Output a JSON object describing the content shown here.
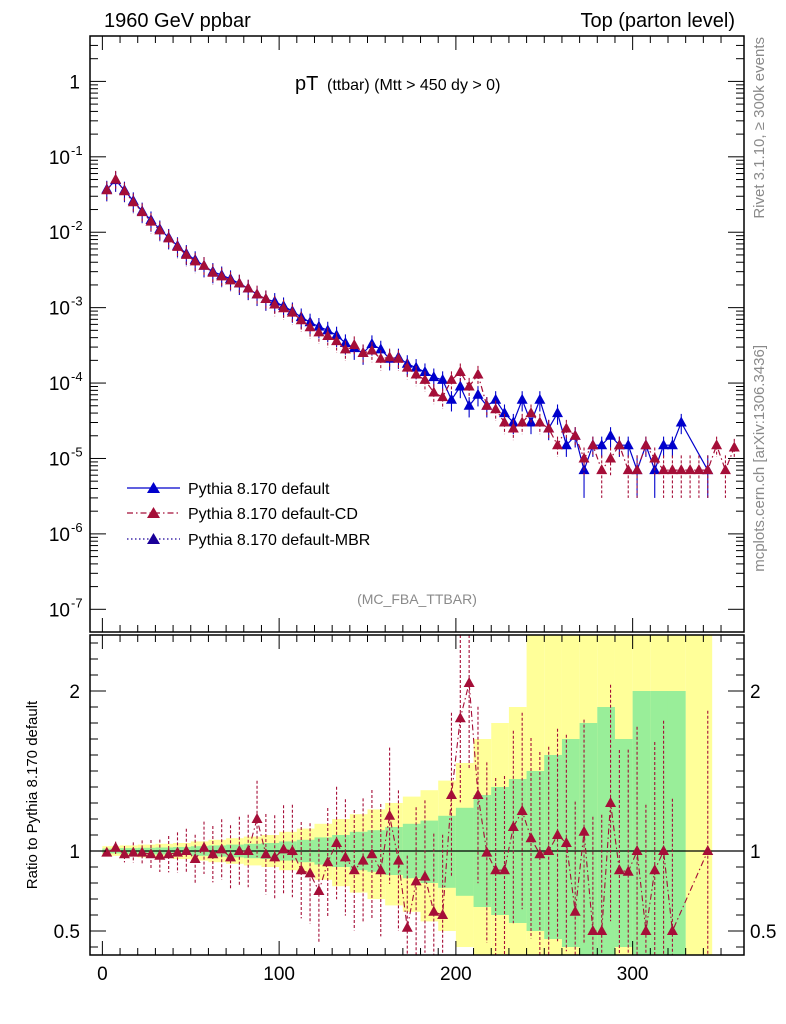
{
  "header": {
    "left": "1960 GeV ppbar",
    "right": "Top (parton level)"
  },
  "plot_title": {
    "main": "pT",
    "sub": "(ttbar) (Mtt > 450 dy > 0)"
  },
  "side_text": {
    "rivet": "Rivet 3.1.10, ≥ 300k events",
    "mcplots": "mcplots.cern.ch [arXiv:1306.3436]"
  },
  "analysis_label": "(MC_FBA_TTBAR)",
  "colors": {
    "default": "#0000cc",
    "cd": "#a50e38",
    "mbr": "#1a0099",
    "band_outer": "#ffff99",
    "band_inner": "#99ee99"
  },
  "chart_data": [
    {
      "type": "scatter",
      "name": "main",
      "yscale": "log",
      "ylim": [
        5e-08,
        4
      ],
      "xlim": [
        -7,
        363
      ],
      "x_ticks": [
        "0",
        "100",
        "200",
        "300"
      ],
      "y_ticks": [
        {
          "base": "1",
          "exp": ""
        },
        {
          "base": "10",
          "exp": "-1"
        },
        {
          "base": "10",
          "exp": "-2"
        },
        {
          "base": "10",
          "exp": "-3"
        },
        {
          "base": "10",
          "exp": "-4"
        },
        {
          "base": "10",
          "exp": "-5"
        },
        {
          "base": "10",
          "exp": "-6"
        },
        {
          "base": "10",
          "exp": "-7"
        }
      ],
      "legend_position": "lower-left",
      "series": [
        {
          "name": "Pythia 8.170 default",
          "style": "solid",
          "x": [
            2.5,
            7.5,
            12.5,
            17.5,
            22.5,
            27.5,
            32.5,
            37.5,
            42.5,
            47.5,
            52.5,
            57.5,
            62.5,
            67.5,
            72.5,
            77.5,
            82.5,
            87.5,
            92.5,
            97.5,
            102.5,
            107.5,
            112.5,
            117.5,
            122.5,
            127.5,
            132.5,
            137.5,
            142.5,
            147.5,
            152.5,
            157.5,
            162.5,
            167.5,
            172.5,
            177.5,
            182.5,
            187.5,
            192.5,
            197.5,
            202.5,
            207.5,
            212.5,
            217.5,
            222.5,
            227.5,
            232.5,
            237.5,
            242.5,
            247.5,
            252.5,
            257.5,
            262.5,
            267.5,
            272.5,
            277.5,
            282.5,
            287.5,
            292.5,
            297.5,
            302.5,
            307.5,
            312.5,
            317.5,
            322.5,
            327.5,
            342.5
          ],
          "y": [
            0.037,
            0.049,
            0.036,
            0.026,
            0.019,
            0.0145,
            0.011,
            0.0085,
            0.0066,
            0.0052,
            0.0043,
            0.0036,
            0.003,
            0.0027,
            0.0024,
            0.0021,
            0.0018,
            0.0015,
            0.0013,
            0.0012,
            0.00105,
            0.0009,
            0.00075,
            0.00064,
            0.00056,
            0.0005,
            0.00043,
            0.00034,
            0.00029,
            0.00025,
            0.00033,
            0.00028,
            0.00021,
            0.00022,
            0.00018,
            0.00016,
            0.00014,
            0.00012,
            0.00011,
            6e-05,
            9e-05,
            5e-05,
            7e-05,
            5e-05,
            6e-05,
            4e-05,
            3e-05,
            6e-05,
            3e-05,
            6e-05,
            2.5e-05,
            4e-05,
            1.5e-05,
            2e-05,
            7e-06,
            1.5e-05,
            1.5e-05,
            2e-05,
            1.5e-05,
            1.5e-05,
            7e-06,
            1.5e-05,
            7e-06,
            1.5e-05,
            1.5e-05,
            3e-05,
            7e-06
          ]
        },
        {
          "name": "Pythia 8.170 default-CD",
          "style": "dash-dot",
          "x": [
            2.5,
            7.5,
            12.5,
            17.5,
            22.5,
            27.5,
            32.5,
            37.5,
            42.5,
            47.5,
            52.5,
            57.5,
            62.5,
            67.5,
            72.5,
            77.5,
            82.5,
            87.5,
            92.5,
            97.5,
            102.5,
            107.5,
            112.5,
            117.5,
            122.5,
            127.5,
            132.5,
            137.5,
            142.5,
            147.5,
            152.5,
            157.5,
            162.5,
            167.5,
            172.5,
            177.5,
            182.5,
            187.5,
            192.5,
            197.5,
            202.5,
            207.5,
            212.5,
            217.5,
            222.5,
            227.5,
            232.5,
            237.5,
            242.5,
            247.5,
            252.5,
            257.5,
            262.5,
            267.5,
            272.5,
            277.5,
            282.5,
            287.5,
            292.5,
            297.5,
            302.5,
            307.5,
            312.5,
            317.5,
            322.5,
            327.5,
            332.5,
            337.5,
            342.5,
            347.5,
            352.5,
            357.5
          ],
          "y": [
            0.036,
            0.05,
            0.035,
            0.025,
            0.0185,
            0.0138,
            0.0106,
            0.0083,
            0.0064,
            0.005,
            0.0041,
            0.0036,
            0.0029,
            0.0026,
            0.0023,
            0.0021,
            0.0018,
            0.0015,
            0.0013,
            0.0011,
            0.00098,
            0.00086,
            0.00068,
            0.00055,
            0.00047,
            0.00042,
            0.00036,
            0.00028,
            0.00032,
            0.00025,
            0.00027,
            0.00021,
            0.00022,
            0.00021,
            0.00016,
            0.00013,
            0.00011,
            7.5e-05,
            6.5e-05,
            0.00011,
            0.00014,
            9e-05,
            0.00013,
            5e-05,
            4.5e-05,
            3e-05,
            2.5e-05,
            3e-05,
            4e-05,
            3e-05,
            2.5e-05,
            1.5e-05,
            2.5e-05,
            2e-05,
            1e-05,
            1.5e-05,
            7e-06,
            1e-05,
            1.5e-05,
            7e-06,
            7e-06,
            1.5e-05,
            1e-05,
            7e-06,
            7e-06,
            7e-06,
            7e-06,
            7e-06,
            7e-06,
            1.5e-05,
            7e-06,
            1.4e-05
          ]
        },
        {
          "name": "Pythia 8.170 default-MBR",
          "style": "dotted"
        }
      ]
    },
    {
      "type": "scatter",
      "name": "ratio",
      "ylabel": "Ratio to Pythia 8.170 default",
      "ylim": [
        0.35,
        2.35
      ],
      "y_ticks": [
        "0.5",
        "1",
        "2"
      ],
      "x_ticks": [
        "0",
        "100",
        "200",
        "300"
      ],
      "ratio_points": {
        "x": [
          2.5,
          7.5,
          12.5,
          17.5,
          22.5,
          27.5,
          32.5,
          37.5,
          42.5,
          47.5,
          52.5,
          57.5,
          62.5,
          67.5,
          72.5,
          77.5,
          82.5,
          87.5,
          92.5,
          97.5,
          102.5,
          107.5,
          112.5,
          117.5,
          122.5,
          127.5,
          132.5,
          137.5,
          142.5,
          147.5,
          152.5,
          157.5,
          162.5,
          167.5,
          172.5,
          177.5,
          182.5,
          187.5,
          192.5,
          197.5,
          202.5,
          207.5,
          212.5,
          217.5,
          222.5,
          227.5,
          232.5,
          237.5,
          242.5,
          247.5,
          252.5,
          257.5,
          262.5,
          267.5,
          272.5,
          277.5,
          282.5,
          287.5,
          292.5,
          297.5,
          302.5,
          307.5,
          312.5,
          317.5,
          322.5,
          342.5
        ],
        "y": [
          0.99,
          1.02,
          0.98,
          0.99,
          0.99,
          0.98,
          0.97,
          0.98,
          0.99,
          1.0,
          0.95,
          1.02,
          0.98,
          1.01,
          0.96,
          1.0,
          1.0,
          1.2,
          0.98,
          0.96,
          1.01,
          1.0,
          0.88,
          0.86,
          0.75,
          0.93,
          1.05,
          0.96,
          0.88,
          0.94,
          0.98,
          0.88,
          1.22,
          0.94,
          0.52,
          0.81,
          0.84,
          0.62,
          0.6,
          1.35,
          1.83,
          2.05,
          1.35,
          0.99,
          0.88,
          0.88,
          1.15,
          1.25,
          1.08,
          0.98,
          1.0,
          1.1,
          1.05,
          0.62,
          1.12,
          0.5,
          0.5,
          1.3,
          0.88,
          0.87,
          1.0,
          0.5,
          0.88,
          1.0,
          0.5,
          1.0
        ]
      },
      "band_outer": [
        [
          0,
          1.03,
          0.97
        ],
        [
          10,
          1.035,
          0.965
        ],
        [
          20,
          1.04,
          0.96
        ],
        [
          30,
          1.045,
          0.955
        ],
        [
          40,
          1.05,
          0.95
        ],
        [
          50,
          1.06,
          0.94
        ],
        [
          60,
          1.07,
          0.93
        ],
        [
          70,
          1.08,
          0.92
        ],
        [
          80,
          1.09,
          0.91
        ],
        [
          90,
          1.1,
          0.9
        ],
        [
          100,
          1.12,
          0.88
        ],
        [
          110,
          1.14,
          0.86
        ],
        [
          120,
          1.17,
          0.82
        ],
        [
          130,
          1.2,
          0.78
        ],
        [
          140,
          1.23,
          0.74
        ],
        [
          150,
          1.26,
          0.7
        ],
        [
          160,
          1.3,
          0.66
        ],
        [
          170,
          1.34,
          0.62
        ],
        [
          180,
          1.38,
          0.56
        ],
        [
          190,
          1.44,
          0.5
        ],
        [
          200,
          1.55,
          0.4
        ],
        [
          210,
          1.7,
          0.35
        ],
        [
          220,
          1.8,
          0.35
        ],
        [
          230,
          1.9,
          0.35
        ],
        [
          240,
          2.35,
          0.35
        ],
        [
          250,
          2.35,
          0.35
        ],
        [
          260,
          2.35,
          0.35
        ],
        [
          270,
          2.35,
          0.35
        ],
        [
          280,
          2.35,
          0.35
        ],
        [
          290,
          2.35,
          0.35
        ],
        [
          300,
          2.35,
          0.35
        ],
        [
          310,
          2.35,
          0.35
        ],
        [
          320,
          2.35,
          0.35
        ],
        [
          330,
          2.35,
          0.35
        ],
        [
          345,
          2.35,
          0.35
        ]
      ],
      "band_inner": [
        [
          0,
          1.015,
          0.985
        ],
        [
          10,
          1.018,
          0.982
        ],
        [
          20,
          1.02,
          0.98
        ],
        [
          30,
          1.022,
          0.978
        ],
        [
          40,
          1.025,
          0.975
        ],
        [
          50,
          1.03,
          0.97
        ],
        [
          60,
          1.035,
          0.965
        ],
        [
          70,
          1.04,
          0.96
        ],
        [
          80,
          1.045,
          0.955
        ],
        [
          90,
          1.05,
          0.95
        ],
        [
          100,
          1.06,
          0.94
        ],
        [
          110,
          1.07,
          0.93
        ],
        [
          120,
          1.085,
          0.915
        ],
        [
          130,
          1.1,
          0.9
        ],
        [
          140,
          1.12,
          0.88
        ],
        [
          150,
          1.13,
          0.87
        ],
        [
          160,
          1.15,
          0.85
        ],
        [
          170,
          1.17,
          0.83
        ],
        [
          180,
          1.19,
          0.8
        ],
        [
          190,
          1.22,
          0.77
        ],
        [
          200,
          1.27,
          0.72
        ],
        [
          210,
          1.35,
          0.65
        ],
        [
          220,
          1.4,
          0.6
        ],
        [
          230,
          1.45,
          0.55
        ],
        [
          240,
          1.5,
          0.5
        ],
        [
          250,
          1.6,
          0.45
        ],
        [
          260,
          1.7,
          0.4
        ],
        [
          270,
          1.8,
          0.35
        ],
        [
          280,
          1.9,
          0.35
        ],
        [
          290,
          1.7,
          0.4
        ],
        [
          300,
          2.0,
          0.35
        ],
        [
          310,
          2.0,
          0.35
        ],
        [
          320,
          2.0,
          0.35
        ],
        [
          330,
          1.0,
          1.0
        ],
        [
          345,
          2.0,
          0.35
        ]
      ]
    }
  ]
}
